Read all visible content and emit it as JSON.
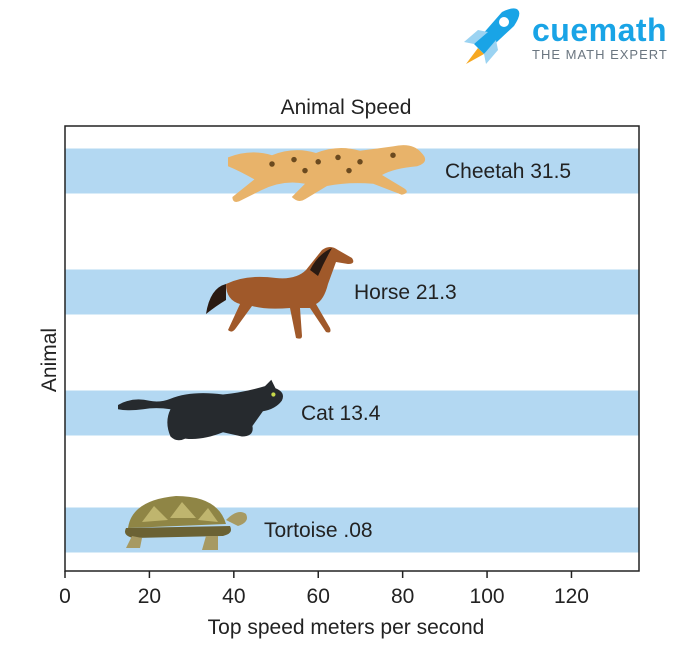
{
  "brand": {
    "name": "cuemath",
    "tagline": "THE MATH EXPERT",
    "icon": "rocket-icon",
    "color": "#19a4e6"
  },
  "chart_data": {
    "type": "bar",
    "orientation": "horizontal",
    "title": "Animal Speed",
    "xlabel": "Top speed meters per second",
    "ylabel": "Animal",
    "xlim": [
      0,
      136
    ],
    "xticks": [
      "0",
      "20",
      "40",
      "60",
      "80",
      "100",
      "120"
    ],
    "grid": false,
    "bar_color": "#b3d8f2",
    "categories": [
      "Cheetah",
      "Horse",
      "Cat",
      "Tortoise"
    ],
    "values": [
      31.5,
      21.3,
      13.4,
      0.08
    ],
    "data_labels": [
      "Cheetah 31.5",
      "Horse 21.3",
      "Cat 13.4",
      "Tortoise .08"
    ],
    "icons": [
      "cheetah-icon",
      "horse-icon",
      "cat-icon",
      "tortoise-icon"
    ]
  }
}
